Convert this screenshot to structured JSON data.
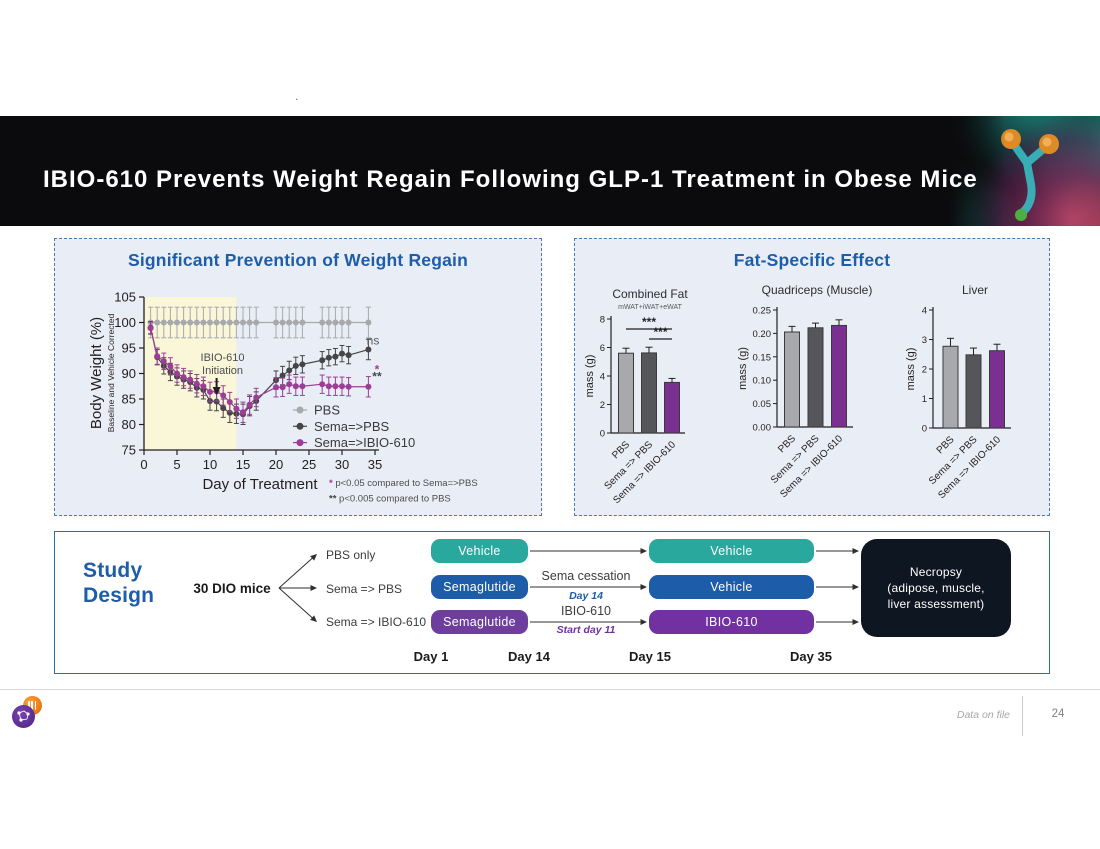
{
  "header": {
    "title": "IBIO-610 Prevents Weight Regain Following GLP-1 Treatment in Obese Mice"
  },
  "stray_text": ".",
  "left_panel": {
    "title": "Significant Prevention of Weight Regain"
  },
  "right_panel": {
    "title": "Fat-Specific Effect"
  },
  "study": {
    "heading_line1": "Study",
    "heading_line2": "Design",
    "cohort": "30 DIO mice",
    "arms": [
      "PBS only",
      "Sema => PBS",
      "Sema => IBIO-610"
    ],
    "phase1_boxes": [
      {
        "label": "Vehicle",
        "color": "#29a89d"
      },
      {
        "label": "Semaglutide",
        "color": "#1c5ca8"
      },
      {
        "label": "Semaglutide",
        "color": "#6e3e9e"
      }
    ],
    "transition_labels": {
      "sema_cessation": "Sema cessation",
      "day14": "Day 14",
      "day14_color": "#1c5ca8",
      "ibio": "IBIO-610",
      "start_day11": "Start day 11",
      "start_day11_color": "#7030a0"
    },
    "phase2_boxes": [
      {
        "label": "Vehicle",
        "color": "#29a89d"
      },
      {
        "label": "Vehicle",
        "color": "#1c5ca8"
      },
      {
        "label": "IBIO-610",
        "color": "#7231a0"
      }
    ],
    "endpoint": {
      "lines": [
        "Necropsy",
        "(adipose, muscle,",
        "liver assessment)"
      ],
      "color": "#0d1621"
    },
    "timeline": [
      "Day 1",
      "Day 14",
      "Day 15",
      "Day 35"
    ]
  },
  "footer": {
    "note": "Data on file",
    "page": "24"
  },
  "chart_data": [
    {
      "type": "line",
      "title": "Significant Prevention of Weight Regain",
      "xlabel": "Day of Treatment",
      "ylabel": "Body Weight (%)",
      "ylabel_sub": "Baseline and Vehicle Corrected",
      "xlim": [
        0,
        35
      ],
      "ylim": [
        75,
        105
      ],
      "xticks": [
        0,
        5,
        10,
        15,
        20,
        25,
        30,
        35
      ],
      "yticks": [
        75,
        80,
        85,
        90,
        95,
        100,
        105
      ],
      "shaded_region": {
        "x0": 0,
        "x1": 14,
        "color": "#faf6d8"
      },
      "annotation": {
        "lines": [
          "IBIO-610",
          "Initiation"
        ],
        "arrow_day": 11
      },
      "sig_labels": [
        {
          "text": "ns",
          "x": 34.7,
          "y": 95.7,
          "color": "#58595b",
          "bold": false
        },
        {
          "text": "*",
          "x": 35.3,
          "y": 90.0,
          "color": "#9c3e97",
          "bold": true
        },
        {
          "text": "**",
          "x": 35.3,
          "y": 88.6,
          "color": "#454548",
          "bold": true
        }
      ],
      "footnotes": [
        {
          "marker": "*",
          "marker_color": "#9c3e97",
          "text": "p<0.05 compared to Sema=>PBS"
        },
        {
          "marker": "**",
          "marker_color": "#454548",
          "text": "p<0.005 compared to PBS"
        }
      ],
      "days": [
        1,
        2,
        3,
        4,
        5,
        6,
        7,
        8,
        9,
        10,
        11,
        12,
        13,
        14,
        15,
        16,
        17,
        20,
        21,
        22,
        23,
        24,
        27,
        28,
        29,
        30,
        31,
        34
      ],
      "series": [
        {
          "name": "PBS",
          "color": "#a7a9ac",
          "values": [
            100,
            100,
            100,
            100,
            100,
            100,
            100,
            100,
            100,
            100,
            100,
            100,
            100,
            100,
            100,
            100,
            100,
            100,
            100,
            100,
            100,
            100,
            100,
            100,
            100,
            100,
            100,
            100
          ],
          "errors": [
            3,
            3,
            3,
            3,
            3,
            3,
            3,
            3,
            3,
            3,
            3,
            3,
            3,
            3,
            3,
            3,
            3,
            3,
            3,
            3,
            3,
            3,
            3,
            3,
            3,
            3,
            3,
            3
          ]
        },
        {
          "name": "Sema=>PBS",
          "color": "#454548",
          "values": [
            99,
            93.2,
            91.5,
            90.3,
            89.4,
            88.8,
            88.3,
            87.2,
            86.8,
            84.6,
            84.5,
            83.2,
            82.3,
            82.1,
            82.0,
            83.6,
            84.6,
            88.7,
            89.6,
            90.6,
            91.5,
            91.8,
            92.6,
            93.1,
            93.3,
            93.9,
            93.6,
            94.7
          ],
          "errors": [
            1.2,
            1.5,
            1.6,
            1.7,
            1.7,
            1.7,
            1.7,
            1.8,
            1.8,
            1.8,
            1.8,
            1.8,
            1.9,
            1.9,
            2.0,
            1.9,
            1.8,
            1.8,
            1.8,
            1.8,
            1.7,
            1.7,
            1.7,
            1.6,
            1.6,
            1.6,
            1.7,
            2.0
          ]
        },
        {
          "name": "Sema=>IBIO-610",
          "color": "#9c3e97",
          "values": [
            98.9,
            93.4,
            92.4,
            91.4,
            90.0,
            89.3,
            88.8,
            88.0,
            87.5,
            86.4,
            86.5,
            85.7,
            84.4,
            83.1,
            82.4,
            83.9,
            85.3,
            87.3,
            87.3,
            87.9,
            87.5,
            87.5,
            87.9,
            87.5,
            87.5,
            87.5,
            87.4,
            87.4
          ],
          "errors": [
            1.2,
            1.6,
            1.6,
            1.7,
            1.7,
            1.7,
            1.7,
            1.8,
            1.8,
            1.9,
            1.9,
            1.9,
            1.9,
            1.9,
            2.0,
            1.9,
            1.8,
            1.9,
            1.8,
            1.8,
            1.8,
            1.8,
            1.8,
            1.8,
            1.8,
            1.8,
            1.8,
            2.0
          ]
        }
      ]
    },
    {
      "type": "bar",
      "title": "Combined Fat",
      "subtitle": "mWAT+iWAT+eWAT",
      "ylabel": "mass (g)",
      "ylim": [
        0,
        8
      ],
      "yticks": [
        "0",
        "2",
        "4",
        "6",
        "8"
      ],
      "categories": [
        "PBS",
        "Sema => PBS",
        "Sema => IBIO-610"
      ],
      "values": [
        5.6,
        5.62,
        3.55
      ],
      "errors": [
        0.35,
        0.4,
        0.28
      ],
      "colors": [
        "#a7a9ac",
        "#55565a",
        "#7b2f91"
      ],
      "significance": [
        {
          "from": 0,
          "to": 2,
          "label": "***"
        },
        {
          "from": 1,
          "to": 2,
          "label": "***"
        }
      ]
    },
    {
      "type": "bar",
      "title": "Quadriceps (Muscle)",
      "subtitle": "",
      "ylabel": "mass (g)",
      "ylim": [
        0,
        0.25
      ],
      "yticks": [
        "0.00",
        "0.05",
        "0.10",
        "0.15",
        "0.20",
        "0.25"
      ],
      "categories": [
        "PBS",
        "Sema => PBS",
        "Sema => IBIO-610"
      ],
      "values": [
        0.203,
        0.212,
        0.217
      ],
      "errors": [
        0.012,
        0.01,
        0.012
      ],
      "colors": [
        "#a7a9ac",
        "#55565a",
        "#7b2f91"
      ],
      "significance": []
    },
    {
      "type": "bar",
      "title": "Liver",
      "subtitle": "",
      "ylabel": "mass (g)",
      "ylim": [
        0,
        4
      ],
      "yticks": [
        "0",
        "1",
        "2",
        "3",
        "4"
      ],
      "categories": [
        "PBS",
        "Sema => PBS",
        "Sema => IBIO-610"
      ],
      "values": [
        2.77,
        2.48,
        2.62
      ],
      "errors": [
        0.27,
        0.23,
        0.22
      ],
      "colors": [
        "#a7a9ac",
        "#55565a",
        "#7b2f91"
      ],
      "significance": []
    }
  ]
}
